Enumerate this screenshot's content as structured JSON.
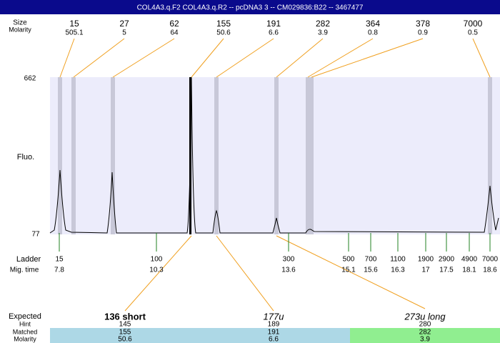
{
  "title_bar": "COL4A3.q.F2  COL4A3.q.R2 -- pcDNA3 3 -- CM029836:B22 -- 3467477",
  "size_label": "Size",
  "molarity_label": "Molarity",
  "peaks": [
    {
      "size": "15",
      "molarity": "505.1"
    },
    {
      "size": "27",
      "molarity": "5"
    },
    {
      "size": "62",
      "molarity": "64"
    },
    {
      "size": "155",
      "molarity": "50.6"
    },
    {
      "size": "191",
      "molarity": "6.6"
    },
    {
      "size": "282",
      "molarity": "3.9"
    },
    {
      "size": "364",
      "molarity": "0.8"
    },
    {
      "size": "378",
      "molarity": "0.9"
    },
    {
      "size": "7000",
      "molarity": "0.5"
    }
  ],
  "axis": {
    "top": "662",
    "bottom": "77",
    "label": "Fluo."
  },
  "ladder": {
    "label": "Ladder",
    "mig_label": "Mig. time",
    "points": [
      {
        "size": "15",
        "time": "7.8"
      },
      {
        "size": "100",
        "time": "10.3"
      },
      {
        "size": "300",
        "time": "13.6"
      },
      {
        "size": "500",
        "time": "15.1"
      },
      {
        "size": "700",
        "time": "15.6"
      },
      {
        "size": "1100",
        "time": "16.3"
      },
      {
        "size": "1900",
        "time": "17"
      },
      {
        "size": "2900",
        "time": "17.5"
      },
      {
        "size": "4900",
        "time": "18.1"
      },
      {
        "size": "7000",
        "time": "18.6"
      }
    ]
  },
  "expected": {
    "label": "Expected",
    "hint_label": "Hint",
    "matched_label": "Matched",
    "molarity_label": "Molarity",
    "items": [
      {
        "expected": "136 short",
        "hint": "145",
        "matched": "155",
        "molarity": "50.6"
      },
      {
        "expected": "177u",
        "hint": "189",
        "matched": "191",
        "molarity": "6.6"
      },
      {
        "expected": "273u long",
        "hint": "280",
        "matched": "282",
        "molarity": "3.9"
      }
    ]
  }
}
